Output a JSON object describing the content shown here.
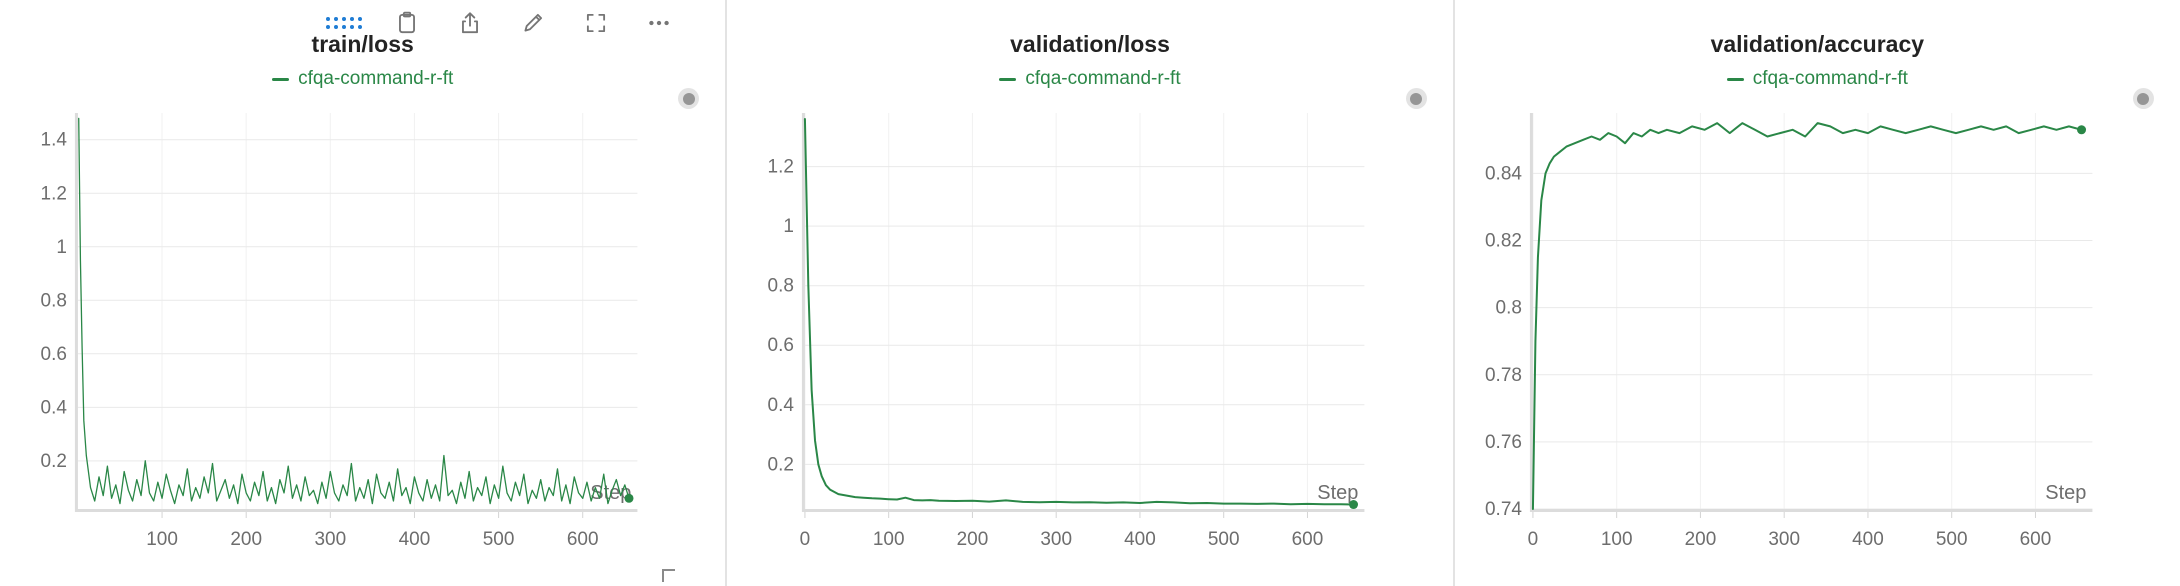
{
  "ui": {
    "colors": {
      "accent_blue": "#1f7cd4",
      "run_green": "#2a8747",
      "axis_text": "#6d6d6d",
      "grid": "#e9e9e9"
    },
    "toolbar_icons": [
      "drag-grid",
      "copy-to-clipboard",
      "export",
      "edit-panel",
      "fullscreen",
      "more-options"
    ],
    "run_marker": "gray-dot"
  },
  "chart_data": [
    {
      "type": "line",
      "title": "train/loss",
      "xlabel": "Step",
      "xlim": [
        0,
        665
      ],
      "ylim": [
        0.02,
        1.5
      ],
      "xticks": [
        100,
        200,
        300,
        400,
        500,
        600
      ],
      "yticks": [
        0.2,
        0.4,
        0.6,
        0.8,
        1,
        1.2,
        1.4
      ],
      "grid": true,
      "legend_position": "top-center",
      "end_dot": true,
      "series": [
        {
          "name": "cfqa-command-r-ft",
          "color": "#2a8747",
          "stroke_width": 1.3,
          "x": [
            1,
            3,
            5,
            7,
            10,
            15,
            20,
            25,
            30,
            35,
            40,
            45,
            50,
            55,
            60,
            65,
            70,
            75,
            80,
            85,
            90,
            95,
            100,
            105,
            110,
            115,
            120,
            125,
            130,
            135,
            140,
            145,
            150,
            155,
            160,
            165,
            170,
            175,
            180,
            185,
            190,
            195,
            200,
            205,
            210,
            215,
            220,
            225,
            230,
            235,
            240,
            245,
            250,
            255,
            260,
            265,
            270,
            275,
            280,
            285,
            290,
            295,
            300,
            305,
            310,
            315,
            320,
            325,
            330,
            335,
            340,
            345,
            350,
            355,
            360,
            365,
            370,
            375,
            380,
            385,
            390,
            395,
            400,
            405,
            410,
            415,
            420,
            425,
            430,
            435,
            440,
            445,
            450,
            455,
            460,
            465,
            470,
            475,
            480,
            485,
            490,
            495,
            500,
            505,
            510,
            515,
            520,
            525,
            530,
            535,
            540,
            545,
            550,
            555,
            560,
            565,
            570,
            575,
            580,
            585,
            590,
            595,
            600,
            605,
            610,
            615,
            620,
            625,
            630,
            635,
            640,
            645,
            650,
            655
          ],
          "y": [
            1.48,
            0.95,
            0.62,
            0.35,
            0.22,
            0.1,
            0.05,
            0.14,
            0.07,
            0.18,
            0.06,
            0.11,
            0.04,
            0.16,
            0.09,
            0.05,
            0.13,
            0.07,
            0.2,
            0.08,
            0.05,
            0.12,
            0.06,
            0.15,
            0.09,
            0.04,
            0.11,
            0.07,
            0.17,
            0.05,
            0.1,
            0.06,
            0.14,
            0.08,
            0.19,
            0.05,
            0.09,
            0.13,
            0.06,
            0.11,
            0.04,
            0.15,
            0.08,
            0.05,
            0.12,
            0.07,
            0.16,
            0.05,
            0.1,
            0.04,
            0.13,
            0.08,
            0.18,
            0.06,
            0.11,
            0.05,
            0.14,
            0.07,
            0.09,
            0.04,
            0.12,
            0.06,
            0.16,
            0.08,
            0.05,
            0.11,
            0.07,
            0.19,
            0.05,
            0.1,
            0.06,
            0.13,
            0.04,
            0.15,
            0.08,
            0.06,
            0.12,
            0.05,
            0.17,
            0.07,
            0.1,
            0.04,
            0.14,
            0.08,
            0.05,
            0.13,
            0.06,
            0.11,
            0.05,
            0.22,
            0.07,
            0.09,
            0.04,
            0.12,
            0.06,
            0.16,
            0.05,
            0.1,
            0.07,
            0.14,
            0.04,
            0.11,
            0.06,
            0.18,
            0.08,
            0.05,
            0.12,
            0.07,
            0.15,
            0.04,
            0.09,
            0.06,
            0.13,
            0.05,
            0.1,
            0.07,
            0.17,
            0.05,
            0.11,
            0.04,
            0.14,
            0.08,
            0.06,
            0.12,
            0.05,
            0.1,
            0.06,
            0.15,
            0.04,
            0.09,
            0.13,
            0.07,
            0.11,
            0.06
          ]
        }
      ]
    },
    {
      "type": "line",
      "title": "validation/loss",
      "xlabel": "Step",
      "xlim": [
        0,
        668
      ],
      "ylim": [
        0.05,
        1.38
      ],
      "xticks": [
        0,
        100,
        200,
        300,
        400,
        500,
        600
      ],
      "yticks": [
        0.2,
        0.4,
        0.6,
        0.8,
        1,
        1.2
      ],
      "grid": true,
      "legend_position": "top-center",
      "end_dot": true,
      "series": [
        {
          "name": "cfqa-command-r-ft",
          "color": "#2a8747",
          "stroke_width": 2,
          "x": [
            0,
            4,
            8,
            12,
            16,
            20,
            25,
            30,
            40,
            50,
            60,
            70,
            80,
            90,
            100,
            110,
            120,
            130,
            140,
            150,
            160,
            180,
            200,
            220,
            240,
            260,
            280,
            300,
            320,
            340,
            360,
            380,
            400,
            420,
            440,
            460,
            480,
            500,
            520,
            540,
            560,
            580,
            600,
            620,
            640,
            655
          ],
          "y": [
            1.36,
            0.8,
            0.45,
            0.28,
            0.2,
            0.16,
            0.13,
            0.115,
            0.1,
            0.095,
            0.09,
            0.088,
            0.086,
            0.085,
            0.083,
            0.082,
            0.088,
            0.08,
            0.079,
            0.08,
            0.078,
            0.077,
            0.078,
            0.075,
            0.079,
            0.074,
            0.073,
            0.074,
            0.072,
            0.073,
            0.071,
            0.072,
            0.07,
            0.074,
            0.072,
            0.069,
            0.07,
            0.068,
            0.068,
            0.067,
            0.068,
            0.066,
            0.067,
            0.066,
            0.066,
            0.065
          ]
        }
      ]
    },
    {
      "type": "line",
      "title": "validation/accuracy",
      "xlabel": "Step",
      "xlim": [
        0,
        668
      ],
      "ylim": [
        0.74,
        0.858
      ],
      "xticks": [
        0,
        100,
        200,
        300,
        400,
        500,
        600
      ],
      "yticks": [
        0.74,
        0.76,
        0.78,
        0.8,
        0.82,
        0.84
      ],
      "grid": true,
      "legend_position": "top-center",
      "end_dot": true,
      "series": [
        {
          "name": "cfqa-command-r-ft",
          "color": "#2a8747",
          "stroke_width": 2,
          "x": [
            0,
            3,
            6,
            10,
            15,
            20,
            25,
            30,
            40,
            50,
            60,
            70,
            80,
            90,
            100,
            110,
            120,
            130,
            140,
            150,
            160,
            175,
            190,
            205,
            220,
            235,
            250,
            265,
            280,
            295,
            310,
            325,
            340,
            355,
            370,
            385,
            400,
            415,
            430,
            445,
            460,
            475,
            490,
            505,
            520,
            535,
            550,
            565,
            580,
            595,
            610,
            625,
            640,
            655
          ],
          "y": [
            0.74,
            0.79,
            0.815,
            0.832,
            0.84,
            0.843,
            0.845,
            0.846,
            0.848,
            0.849,
            0.85,
            0.851,
            0.85,
            0.852,
            0.851,
            0.849,
            0.852,
            0.851,
            0.853,
            0.852,
            0.853,
            0.852,
            0.854,
            0.853,
            0.855,
            0.852,
            0.855,
            0.853,
            0.851,
            0.852,
            0.853,
            0.851,
            0.855,
            0.854,
            0.852,
            0.853,
            0.852,
            0.854,
            0.853,
            0.852,
            0.853,
            0.854,
            0.853,
            0.852,
            0.853,
            0.854,
            0.853,
            0.854,
            0.852,
            0.853,
            0.854,
            0.853,
            0.854,
            0.853
          ]
        }
      ]
    }
  ]
}
